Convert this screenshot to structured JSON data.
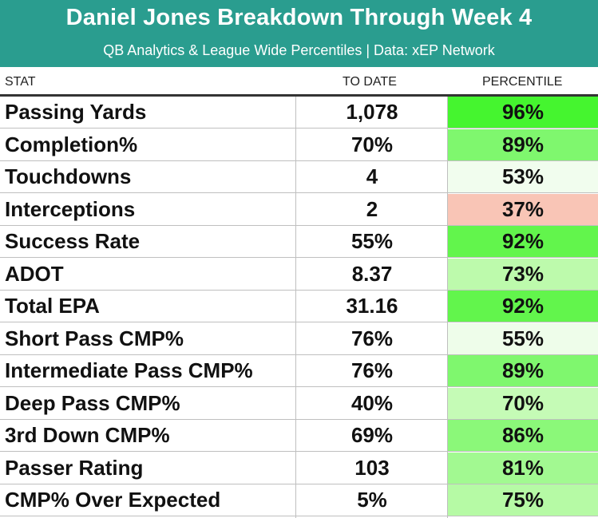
{
  "header": {
    "title": "Daniel Jones Breakdown Through Week 4",
    "subtitle": "QB Analytics & League Wide Percentiles | Data: xEP Network",
    "bg_color": "#2a9d8f"
  },
  "columns": {
    "stat": "STAT",
    "to_date": "TO DATE",
    "percentile": "PERCENTILE"
  },
  "rows": [
    {
      "stat": "Passing Yards",
      "to_date": "1,078",
      "percentile": "96%",
      "percentile_value": 96,
      "color": "#45f52f"
    },
    {
      "stat": "Completion%",
      "to_date": "70%",
      "percentile": "89%",
      "percentile_value": 89,
      "color": "#7ff76e"
    },
    {
      "stat": "Touchdowns",
      "to_date": "4",
      "percentile": "53%",
      "percentile_value": 53,
      "color": "#f1fdee"
    },
    {
      "stat": "Interceptions",
      "to_date": "2",
      "percentile": "37%",
      "percentile_value": 37,
      "color": "#f9c5b6"
    },
    {
      "stat": "Success Rate",
      "to_date": "55%",
      "percentile": "92%",
      "percentile_value": 92,
      "color": "#62f54c"
    },
    {
      "stat": "ADOT",
      "to_date": "8.37",
      "percentile": "73%",
      "percentile_value": 73,
      "color": "#bdfaac"
    },
    {
      "stat": "Total EPA",
      "to_date": "31.16",
      "percentile": "92%",
      "percentile_value": 92,
      "color": "#62f54c"
    },
    {
      "stat": "Short Pass CMP%",
      "to_date": "76%",
      "percentile": "55%",
      "percentile_value": 55,
      "color": "#eefdea"
    },
    {
      "stat": "Intermediate Pass CMP%",
      "to_date": "76%",
      "percentile": "89%",
      "percentile_value": 89,
      "color": "#7ff76e"
    },
    {
      "stat": "Deep Pass CMP%",
      "to_date": "40%",
      "percentile": "70%",
      "percentile_value": 70,
      "color": "#c5fbb6"
    },
    {
      "stat": "3rd Down CMP%",
      "to_date": "69%",
      "percentile": "86%",
      "percentile_value": 86,
      "color": "#8bf879"
    },
    {
      "stat": "Passer Rating",
      "to_date": "103",
      "percentile": "81%",
      "percentile_value": 81,
      "color": "#a2f991"
    },
    {
      "stat": "CMP% Over Expected",
      "to_date": "5%",
      "percentile": "75%",
      "percentile_value": 75,
      "color": "#b6faa5"
    }
  ]
}
